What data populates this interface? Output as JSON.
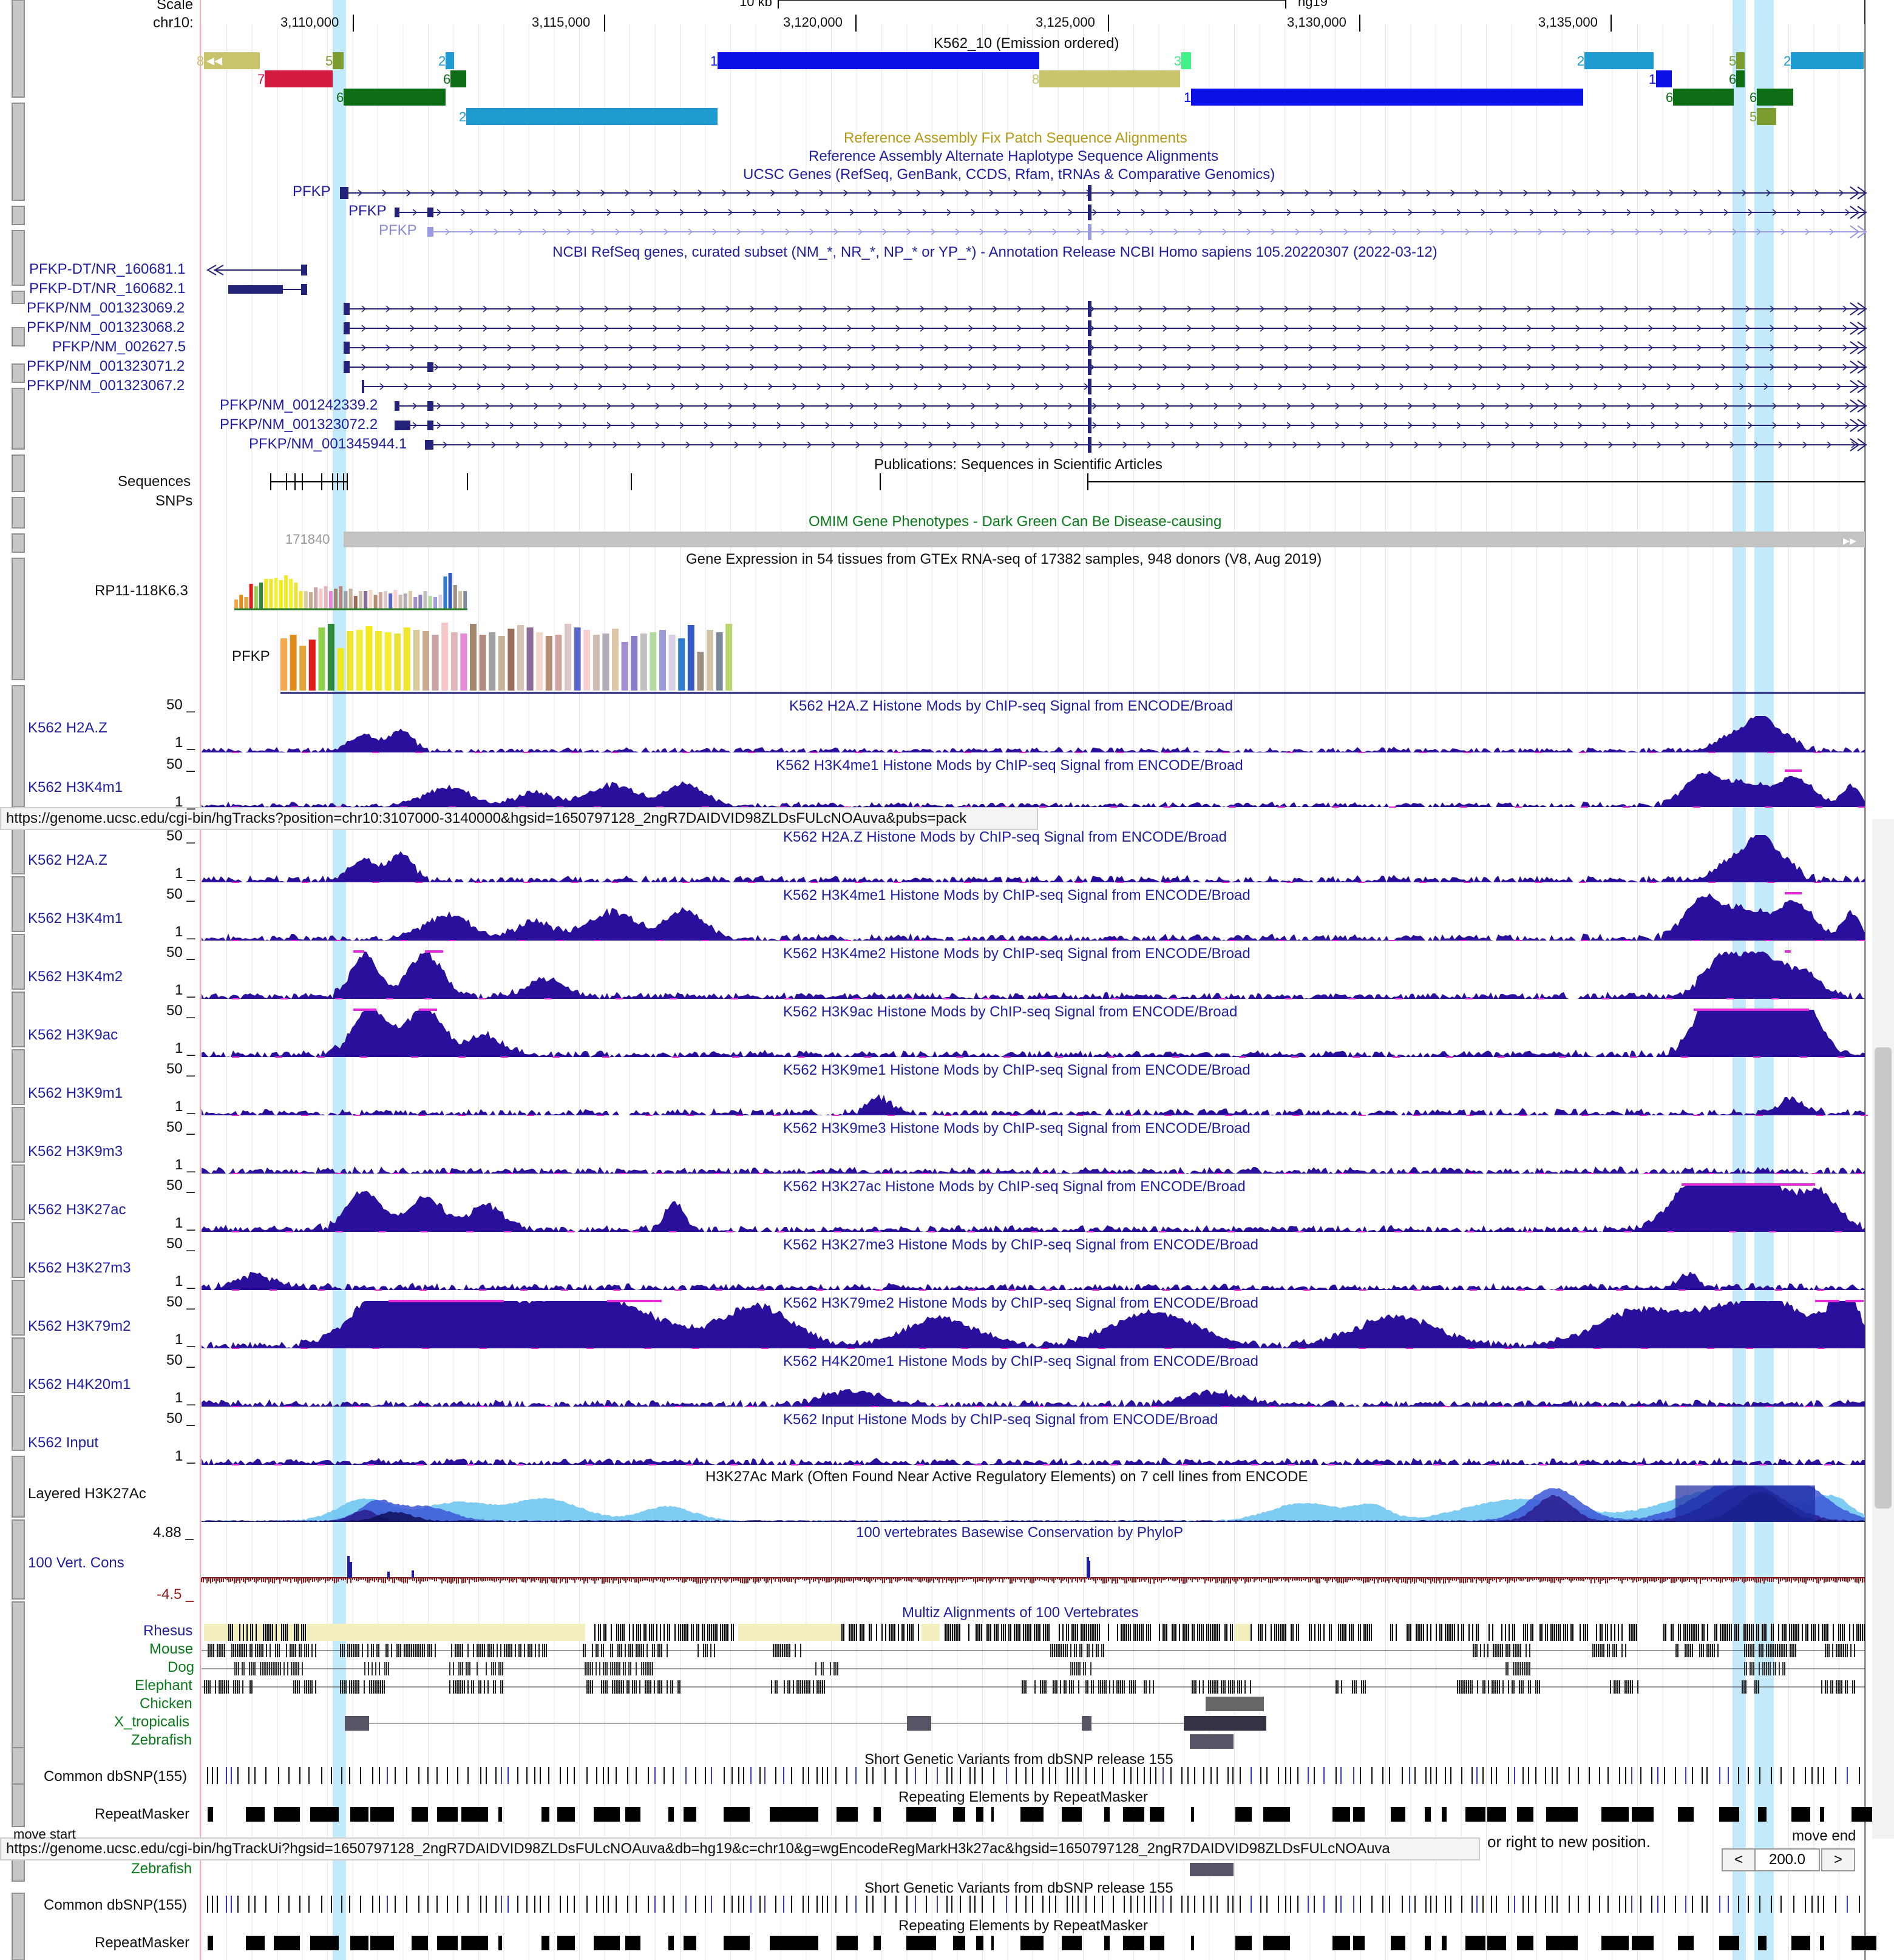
{
  "browser": {
    "status_url_1": "https://genome.ucsc.edu/cgi-bin/hgTracks?position=chr10:3107000-3140000&hgsid=1650797128_2ngR7DAIDVID98ZLDsFULcNOAuva&pubs=pack",
    "status_url_2": "https://genome.ucsc.edu/cgi-bin/hgTrackUi?hgsid=1650797128_2ngR7DAIDVID98ZLDsFULcNOAuva&db=hg19&c=chr10&g=wgEncodeRegMarkH3k27ac&hgsid=1650797128_2ngR7DAIDVID98ZLDsFULcNOAuva"
  },
  "ruler": {
    "scale_label": "Scale",
    "chrom_label": "chr10:",
    "scale_bar": "10 kb",
    "assembly": "hg19",
    "ticks": [
      "3,110,000",
      "3,115,000",
      "3,120,000",
      "3,125,000",
      "3,130,000",
      "3,135,000"
    ]
  },
  "chromhmm": {
    "title": "K562_10 (Emission ordered)",
    "states": [
      "8",
      "5",
      "2",
      "1",
      "3",
      "2",
      "5",
      "2",
      "7",
      "6",
      "6",
      "8",
      "1",
      "1",
      "6",
      "6",
      "6",
      "2",
      "5"
    ]
  },
  "track_titles": {
    "fix_patch": "Reference Assembly Fix Patch Sequence Alignments",
    "alt_haplo": "Reference Assembly Alternate Haplotype Sequence Alignments",
    "ucsc_genes": "UCSC Genes (RefSeq, GenBank, CCDS, Rfam, tRNAs & Comparative Genomics)",
    "refseq": "NCBI RefSeq genes, curated subset (NM_*, NR_*, NP_* or YP_*) - Annotation Release NCBI Homo sapiens 105.20220307 (2022-03-12)",
    "pubs": "Publications: Sequences in Scientific Articles",
    "omim": "OMIM Gene Phenotypes - Dark Green Can Be Disease-causing",
    "gtex": "Gene Expression in 54 tissues from GTEx RNA-seq of 17382 samples, 948 donors (V8, Aug 2019)",
    "layered": "H3K27Ac Mark (Often Found Near Active Regulatory Elements) on 7 cell lines from ENCODE",
    "phylop": "100 vertebrates Basewise Conservation by PhyloP",
    "multiz": "Multiz Alignments of 100 Vertebrates",
    "dbsnp": "Short Genetic Variants from dbSNP release 155",
    "rmsk": "Repeating Elements by RepeatMasker"
  },
  "ucsc_genes": [
    "PFKP",
    "PFKP",
    "PFKP"
  ],
  "refseq_genes": [
    "PFKP-DT/NR_160681.1",
    "PFKP-DT/NR_160682.1",
    "PFKP/NM_001323069.2",
    "PFKP/NM_001323068.2",
    "PFKP/NM_002627.5",
    "PFKP/NM_001323071.2",
    "PFKP/NM_001323067.2",
    "PFKP/NM_001242339.2",
    "PFKP/NM_001323072.2",
    "PFKP/NM_001345944.1"
  ],
  "pubs_labels": {
    "sequences": "Sequences",
    "snps": "SNPs"
  },
  "omim_id": "171840",
  "gtex_genes": [
    "RP11-118K6.3",
    "PFKP"
  ],
  "histone_tracks": [
    {
      "label": "K562 H2A.Z",
      "title": "K562 H2A.Z Histone Mods by ChIP-seq Signal from ENCODE/Broad"
    },
    {
      "label": "K562 H3K4m1",
      "title": "K562 H3K4me1 Histone Mods by ChIP-seq Signal from ENCODE/Broad"
    },
    {
      "label": "K562 H3K4m2",
      "title": "K562 H3K4me2 Histone Mods by ChIP-seq Signal from ENCODE/Broad"
    },
    {
      "label": "K562 H3K9ac",
      "title": "K562 H3K9ac Histone Mods by ChIP-seq Signal from ENCODE/Broad"
    },
    {
      "label": "K562 H3K9m1",
      "title": "K562 H3K9me1 Histone Mods by ChIP-seq Signal from ENCODE/Broad"
    },
    {
      "label": "K562 H3K9m3",
      "title": "K562 H3K9me3 Histone Mods by ChIP-seq Signal from ENCODE/Broad"
    },
    {
      "label": "K562 H3K27ac",
      "title": "K562 H3K27ac Histone Mods by ChIP-seq Signal from ENCODE/Broad"
    },
    {
      "label": "K562 H3K27m3",
      "title": "K562 H3K27me3 Histone Mods by ChIP-seq Signal from ENCODE/Broad"
    },
    {
      "label": "K562 H3K79m2",
      "title": "K562 H3K79me2 Histone Mods by ChIP-seq Signal from ENCODE/Broad"
    },
    {
      "label": "K562 H4K20m1",
      "title": "K562 H4K20me1 Histone Mods by ChIP-seq Signal from ENCODE/Broad"
    },
    {
      "label": "K562 Input",
      "title": "K562 Input Histone Mods by ChIP-seq Signal from ENCODE/Broad"
    }
  ],
  "histone_scale": {
    "max": "50 _",
    "min": "1 _"
  },
  "layered_label": "Layered H3K27Ac",
  "phylop": {
    "label": "100 Vert. Cons",
    "max": "4.88 _",
    "min": "-4.5 _"
  },
  "multiz_species": [
    "Rhesus",
    "Mouse",
    "Dog",
    "Elephant",
    "Chicken",
    "X_tropicalis",
    "Zebrafish"
  ],
  "dbsnp_label": "Common dbSNP(155)",
  "rmsk_label": "RepeatMasker",
  "footer": {
    "move_start": "move start",
    "move_end": "move end",
    "hint_tail": "or right to new position.",
    "nav_left": "<",
    "nav_right": ">",
    "move_amount": "200.0"
  },
  "colors": {
    "track_blue": "#1f1f9e",
    "signal": "#2a0f9c",
    "highlight": "#aee3f8",
    "omim_green": "#0a7a1a",
    "fix_patch": "#b59a16"
  }
}
